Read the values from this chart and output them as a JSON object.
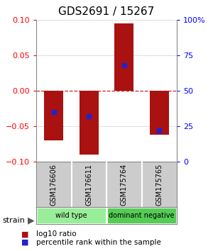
{
  "title": "GDS2691 / 15267",
  "samples": [
    "GSM176606",
    "GSM176611",
    "GSM175764",
    "GSM175765"
  ],
  "log10_ratio": [
    -0.07,
    -0.09,
    0.095,
    -0.062
  ],
  "percentile_rank_pct": [
    35,
    32,
    68,
    22
  ],
  "ylim": [
    -0.1,
    0.1
  ],
  "yticks_left": [
    -0.1,
    -0.05,
    0,
    0.05,
    0.1
  ],
  "yticks_right": [
    0,
    25,
    50,
    75,
    100
  ],
  "groups": [
    {
      "label": "wild type",
      "samples": [
        0,
        1
      ],
      "color": "#99ee99"
    },
    {
      "label": "dominant negative",
      "samples": [
        2,
        3
      ],
      "color": "#55cc55"
    }
  ],
  "bar_color": "#aa1111",
  "dot_color": "#2222cc",
  "bar_width": 0.55,
  "zero_line_color": "#cc2222",
  "background_color": "#ffffff",
  "title_fontsize": 11,
  "tick_fontsize": 8,
  "sample_label_fontsize": 7,
  "group_fontsize": 7,
  "legend_fontsize": 7.5
}
